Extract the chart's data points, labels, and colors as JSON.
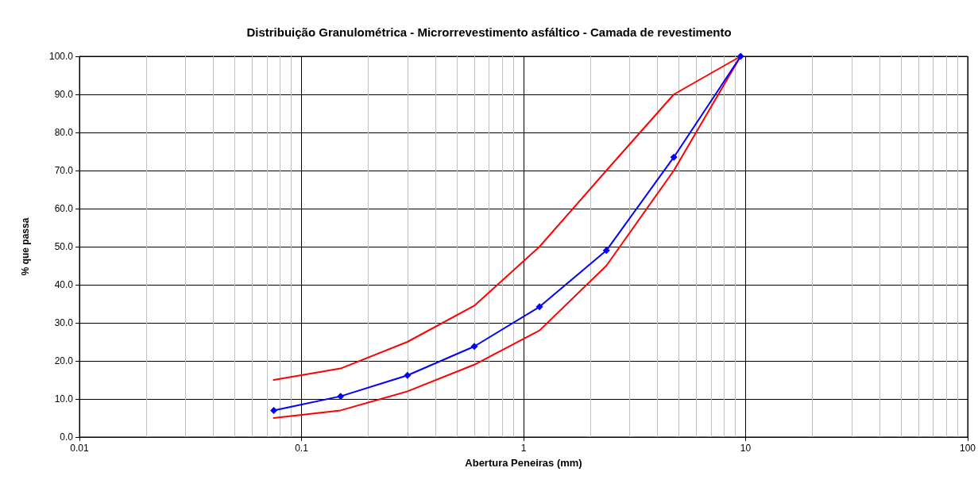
{
  "chart_data": {
    "type": "line",
    "title": "Distribuição Granulométrica - Microrrevestimento asfáltico - Camada de revestimento",
    "xlabel": "Abertura Peneiras (mm)",
    "ylabel": "% que passa",
    "log": "x",
    "grid": true,
    "line_style": "solid",
    "x": [
      0.075,
      0.15,
      0.3,
      0.6,
      1.18,
      2.36,
      4.75,
      9.5
    ],
    "xlim": [
      0.01,
      100
    ],
    "xticks": [
      0.01,
      {
        "value": 0.02,
        "label": null
      },
      {
        "value": 0.03,
        "label": null
      },
      {
        "value": 0.04,
        "label": null
      },
      {
        "value": 0.05,
        "label": null
      },
      {
        "value": 0.06,
        "label": null
      },
      {
        "value": 0.07,
        "label": null
      },
      {
        "value": 0.08,
        "label": null
      },
      {
        "value": 0.09,
        "label": null
      },
      0.1,
      {
        "value": 0.2,
        "label": null
      },
      {
        "value": 0.3,
        "label": null
      },
      {
        "value": 0.4,
        "label": null
      },
      {
        "value": 0.5,
        "label": null
      },
      {
        "value": 0.6,
        "label": null
      },
      {
        "value": 0.7,
        "label": null
      },
      {
        "value": 0.8,
        "label": null
      },
      {
        "value": 0.9,
        "label": null
      },
      1,
      {
        "value": 2,
        "label": null
      },
      {
        "value": 3,
        "label": null
      },
      {
        "value": 4,
        "label": null
      },
      {
        "value": 5,
        "label": null
      },
      {
        "value": 6,
        "label": null
      },
      {
        "value": 7,
        "label": null
      },
      {
        "value": 8,
        "label": null
      },
      {
        "value": 9,
        "label": null
      },
      10,
      {
        "value": 20,
        "label": null
      },
      {
        "value": 30,
        "label": null
      },
      {
        "value": 40,
        "label": null
      },
      {
        "value": 50,
        "label": null
      },
      {
        "value": 60,
        "label": null
      },
      {
        "value": 70,
        "label": null
      },
      {
        "value": 80,
        "label": null
      },
      {
        "value": 90,
        "label": null
      },
      100
    ],
    "ylim": [
      0,
      100
    ],
    "yticks": [
      {
        "value": 0,
        "label": "0.0"
      },
      {
        "value": 10,
        "label": "10.0"
      },
      {
        "value": 20,
        "label": "20.0"
      },
      {
        "value": 30,
        "label": "30.0"
      },
      {
        "value": 40,
        "label": "40.0"
      },
      {
        "value": 50,
        "label": "50.0"
      },
      {
        "value": 60,
        "label": "60.0"
      },
      {
        "value": 70,
        "label": "70.0"
      },
      {
        "value": 80,
        "label": "80.0"
      },
      {
        "value": 90,
        "label": "90.0"
      },
      {
        "value": 100,
        "label": "100.0"
      }
    ],
    "series": [
      {
        "color": "#ff0000",
        "marker": "none",
        "values": [
          15,
          18,
          25,
          34.5,
          50,
          70,
          90,
          100
        ]
      },
      {
        "color": "#ff0000",
        "marker": "none",
        "values": [
          5,
          7,
          12,
          19,
          28,
          45,
          70,
          100
        ]
      },
      {
        "color": "#0000ff",
        "marker": "diamond",
        "values": [
          7,
          10.7,
          16.2,
          23.8,
          34.2,
          49,
          73.5,
          100
        ]
      }
    ]
  }
}
